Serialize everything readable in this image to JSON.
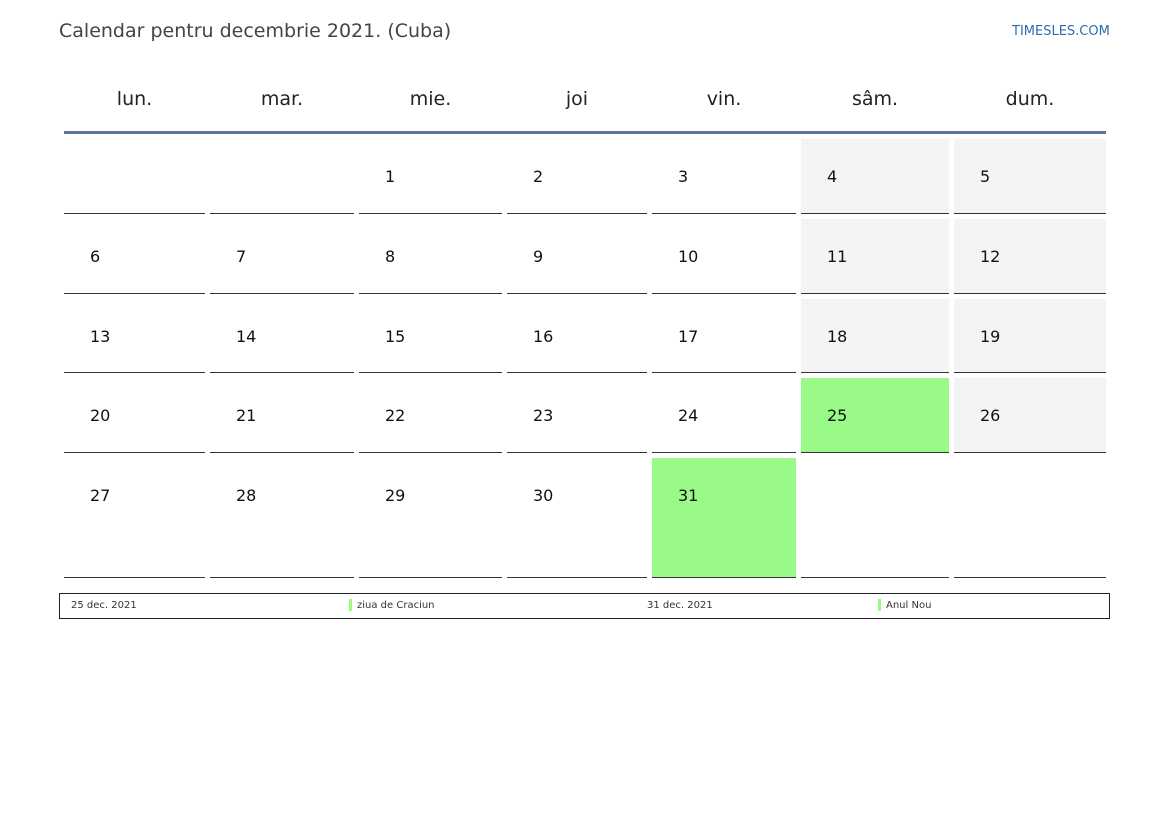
{
  "title": "Calendar pentru decembrie 2021. (Cuba)",
  "site": "TIMESLES.COM",
  "weekdays": [
    "lun.",
    "mar.",
    "mie.",
    "joi",
    "vin.",
    "sâm.",
    "dum."
  ],
  "weeks": [
    [
      "",
      "",
      "1",
      "2",
      "3",
      "4",
      "5"
    ],
    [
      "6",
      "7",
      "8",
      "9",
      "10",
      "11",
      "12"
    ],
    [
      "13",
      "14",
      "15",
      "16",
      "17",
      "18",
      "19"
    ],
    [
      "20",
      "21",
      "22",
      "23",
      "24",
      "25",
      "26"
    ],
    [
      "27",
      "28",
      "29",
      "30",
      "31",
      "",
      ""
    ]
  ],
  "holidays": [
    {
      "date": "25 dec. 2021",
      "name": "ziua de Craciun",
      "day": "25"
    },
    {
      "date": "31 dec. 2021",
      "name": "Anul Nou",
      "day": "31"
    }
  ],
  "colors": {
    "holiday": "#99fa87",
    "weekend": "#f4f4f4",
    "header_rule": "#5b7597",
    "link": "#2a6fb0"
  }
}
